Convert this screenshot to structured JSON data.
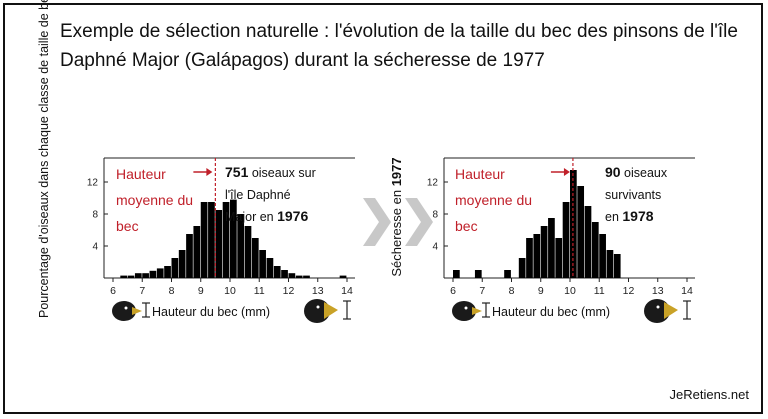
{
  "title": "Exemple de sélection naturelle : l'évolution de la taille du bec des pinsons de l'île Daphné Major (Galápagos) durant la sécheresse de 1977",
  "y_axis_label": "Pourcentage d'oiseaux dans chaque classe de taille de bec",
  "middle_label": {
    "prefix": "Sécheresse en ",
    "year": "1977"
  },
  "footer": "JeRetiens.net",
  "colors": {
    "bars": "#000000",
    "mean_annotation": "#c0202a",
    "arrow_gray": "#c8c8c8"
  },
  "chart_data": [
    {
      "type": "bar",
      "xlabel": "Hauteur du bec (mm)",
      "x_ticks": [
        6,
        7,
        8,
        9,
        10,
        11,
        12,
        13,
        14
      ],
      "y_ticks": [
        4,
        8,
        12
      ],
      "xlim": [
        6,
        14
      ],
      "ylim": [
        0,
        15
      ],
      "bin_width": 0.25,
      "bins_start": [
        6.25,
        6.5,
        6.75,
        7.0,
        7.25,
        7.5,
        7.75,
        8.0,
        8.25,
        8.5,
        8.75,
        9.0,
        9.25,
        9.5,
        9.75,
        10.0,
        10.25,
        10.5,
        10.75,
        11.0,
        11.25,
        11.5,
        11.75,
        12.0,
        12.25,
        12.5,
        13.75
      ],
      "values": [
        0.3,
        0.3,
        0.6,
        0.6,
        0.9,
        1.2,
        1.5,
        2.5,
        3.5,
        5.5,
        6.5,
        9.5,
        9.5,
        8.5,
        9.5,
        9.8,
        8.0,
        6.5,
        5.0,
        3.5,
        2.5,
        1.5,
        1.0,
        0.6,
        0.3,
        0.3,
        0.3
      ],
      "mean": 9.5,
      "mean_label": [
        "Hauteur",
        "moyenne du",
        "bec"
      ],
      "count_label": [
        {
          "bold": "751",
          "text": " oiseaux sur"
        },
        {
          "bold": "",
          "text": "l'île Daphné"
        },
        {
          "bold": "1976",
          "text": "Major en ",
          "bold_after": true
        }
      ]
    },
    {
      "type": "bar",
      "xlabel": "Hauteur du bec (mm)",
      "x_ticks": [
        6,
        7,
        8,
        9,
        10,
        11,
        12,
        13,
        14
      ],
      "y_ticks": [
        4,
        8,
        12
      ],
      "xlim": [
        6,
        14
      ],
      "ylim": [
        0,
        15
      ],
      "bin_width": 0.25,
      "bins_start": [
        6.0,
        6.75,
        7.75,
        8.25,
        8.5,
        8.75,
        9.0,
        9.25,
        9.5,
        9.75,
        10.0,
        10.25,
        10.5,
        10.75,
        11.0,
        11.25,
        11.5
      ],
      "values": [
        1.0,
        1.0,
        1.0,
        2.5,
        5.0,
        5.5,
        6.5,
        7.5,
        5.0,
        9.5,
        13.5,
        11.5,
        9.0,
        7.0,
        5.5,
        3.5,
        3.0
      ],
      "mean": 10.1,
      "mean_label": [
        "Hauteur",
        "moyenne du",
        "bec"
      ],
      "count_label": [
        {
          "bold": "90",
          "text": " oiseaux"
        },
        {
          "bold": "",
          "text": "survivants"
        },
        {
          "bold": "1978",
          "text": "en ",
          "bold_after": true
        }
      ]
    }
  ]
}
